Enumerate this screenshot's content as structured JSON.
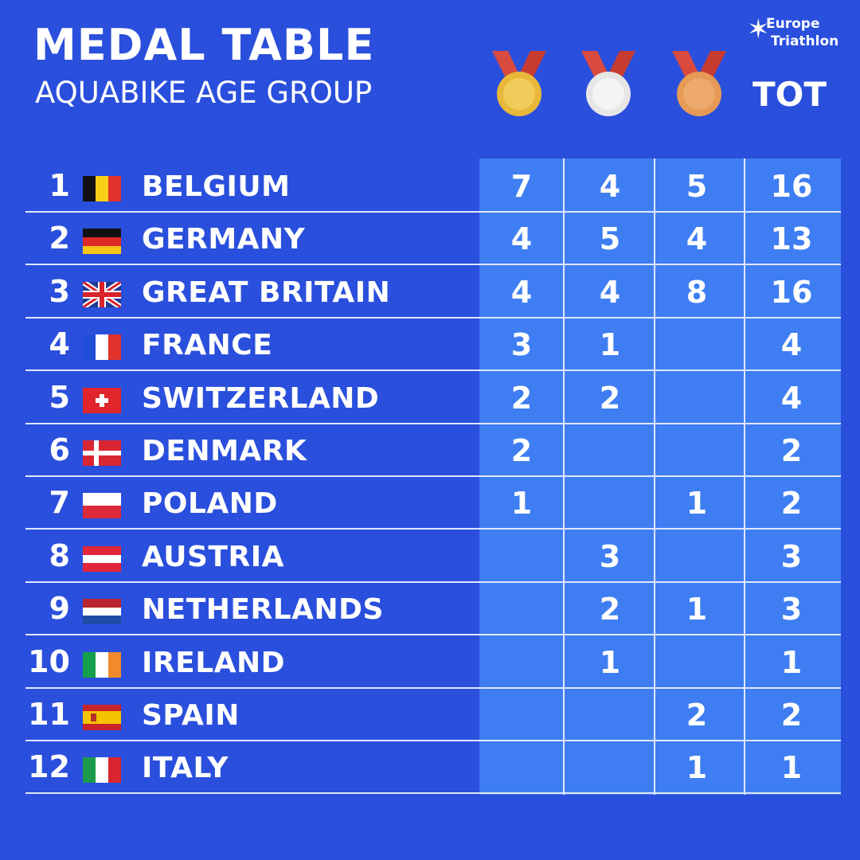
{
  "header": {
    "title": "MEDAL TABLE",
    "subtitle": "AQUABIKE AGE GROUP",
    "logo_line1": "Europe",
    "logo_line2": "Triathlon",
    "tot_label": "TOT"
  },
  "medals": [
    {
      "icon": "gold-medal-icon",
      "color": "#e8b83a"
    },
    {
      "icon": "silver-medal-icon",
      "color": "#e6e6e6"
    },
    {
      "icon": "bronze-medal-icon",
      "color": "#e59a56"
    }
  ],
  "colors": {
    "background": "#2a4fdc",
    "column_highlight": "#3f7ef2",
    "ribbon": "#d94a3f"
  },
  "rows": [
    {
      "rank": "1",
      "country": "BELGIUM",
      "flag": "belgium-flag-icon",
      "gold": "7",
      "silver": "4",
      "bronze": "5",
      "total": "16"
    },
    {
      "rank": "2",
      "country": "GERMANY",
      "flag": "germany-flag-icon",
      "gold": "4",
      "silver": "5",
      "bronze": "4",
      "total": "13"
    },
    {
      "rank": "3",
      "country": "GREAT BRITAIN",
      "flag": "great-britain-flag-icon",
      "gold": "4",
      "silver": "4",
      "bronze": "8",
      "total": "16"
    },
    {
      "rank": "4",
      "country": "FRANCE",
      "flag": "france-flag-icon",
      "gold": "3",
      "silver": "1",
      "bronze": "",
      "total": "4"
    },
    {
      "rank": "5",
      "country": "SWITZERLAND",
      "flag": "switzerland-flag-icon",
      "gold": "2",
      "silver": "2",
      "bronze": "",
      "total": "4"
    },
    {
      "rank": "6",
      "country": "DENMARK",
      "flag": "denmark-flag-icon",
      "gold": "2",
      "silver": "",
      "bronze": "",
      "total": "2"
    },
    {
      "rank": "7",
      "country": "POLAND",
      "flag": "poland-flag-icon",
      "gold": "1",
      "silver": "",
      "bronze": "1",
      "total": "2"
    },
    {
      "rank": "8",
      "country": "AUSTRIA",
      "flag": "austria-flag-icon",
      "gold": "",
      "silver": "3",
      "bronze": "",
      "total": "3"
    },
    {
      "rank": "9",
      "country": "NETHERLANDS",
      "flag": "netherlands-flag-icon",
      "gold": "",
      "silver": "2",
      "bronze": "1",
      "total": "3"
    },
    {
      "rank": "10",
      "country": "IRELAND",
      "flag": "ireland-flag-icon",
      "gold": "",
      "silver": "1",
      "bronze": "",
      "total": "1"
    },
    {
      "rank": "11",
      "country": "SPAIN",
      "flag": "spain-flag-icon",
      "gold": "",
      "silver": "",
      "bronze": "2",
      "total": "2"
    },
    {
      "rank": "12",
      "country": "ITALY",
      "flag": "italy-flag-icon",
      "gold": "",
      "silver": "",
      "bronze": "1",
      "total": "1"
    }
  ]
}
